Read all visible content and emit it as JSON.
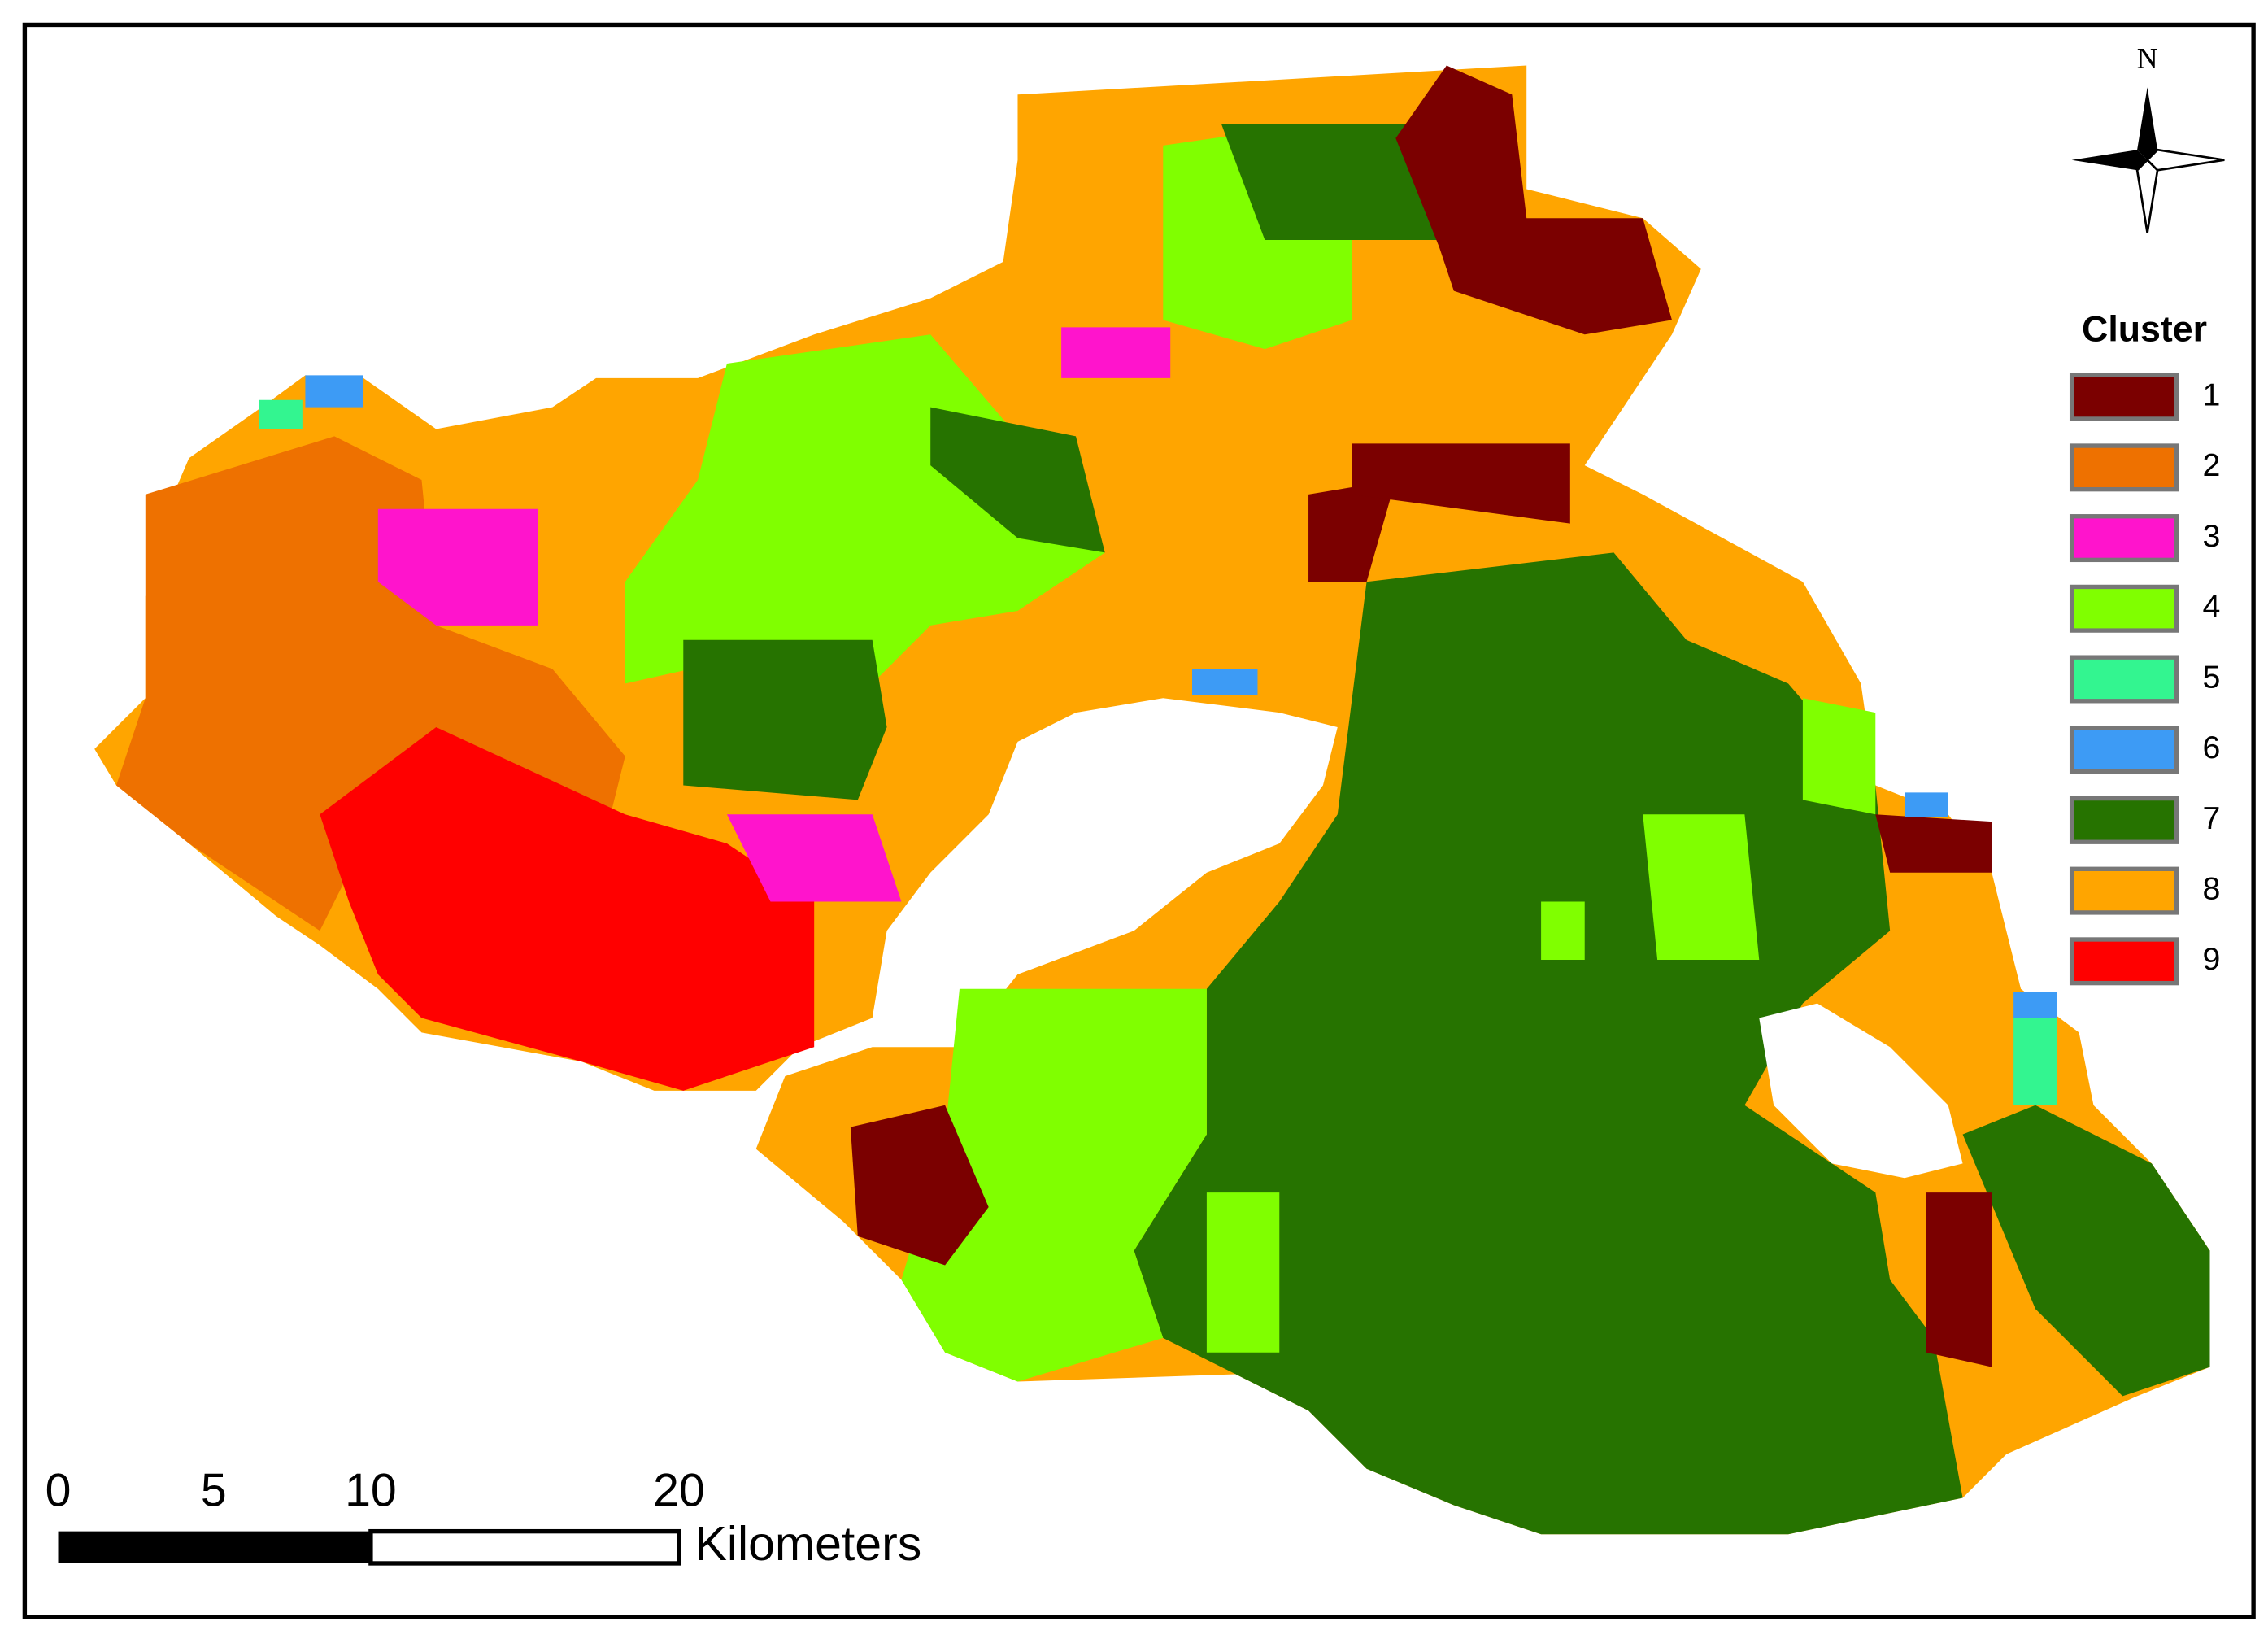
{
  "north_arrow": {
    "label": "N"
  },
  "legend": {
    "title": "Cluster",
    "items": [
      {
        "label": "1",
        "color": "#7b0000"
      },
      {
        "label": "2",
        "color": "#ee7100"
      },
      {
        "label": "3",
        "color": "#ff14cc"
      },
      {
        "label": "4",
        "color": "#80ff00"
      },
      {
        "label": "5",
        "color": "#33f590"
      },
      {
        "label": "6",
        "color": "#3d9bf5"
      },
      {
        "label": "7",
        "color": "#267300"
      },
      {
        "label": "8",
        "color": "#ffa500"
      },
      {
        "label": "9",
        "color": "#ff0000"
      }
    ]
  },
  "scale_bar": {
    "ticks": [
      "0",
      "5",
      "10",
      "20"
    ],
    "unit": "Kilometers"
  }
}
